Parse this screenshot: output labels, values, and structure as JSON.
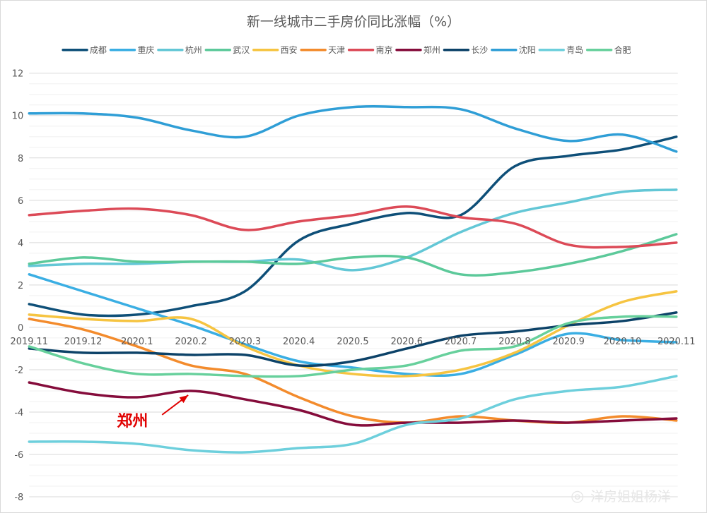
{
  "chart_data": {
    "type": "line",
    "title": "新一线城市二手房价同比涨幅（%）",
    "categories": [
      "2019.11",
      "2019.12",
      "2020.1",
      "2020.2",
      "2020.3",
      "2020.4",
      "2020.5",
      "2020.6",
      "2020.7",
      "2020.8",
      "2020.9",
      "2020.10",
      "2020.11"
    ],
    "ylim": [
      -8,
      12
    ],
    "yticks": [
      12,
      10,
      8,
      6,
      4,
      2,
      0,
      -2,
      -4,
      -6,
      -8
    ],
    "xlabel": "",
    "ylabel": "",
    "grid": true,
    "legend_position": "top",
    "series": [
      {
        "name": "成都",
        "color": "#0e4f78",
        "values": [
          1.1,
          0.6,
          0.6,
          1.0,
          1.7,
          4.1,
          4.9,
          5.4,
          5.3,
          7.6,
          8.1,
          8.4,
          9.0
        ]
      },
      {
        "name": "重庆",
        "color": "#3aaee3",
        "values": [
          2.5,
          1.7,
          0.9,
          0.1,
          -0.8,
          -1.6,
          -1.9,
          -2.2,
          -2.2,
          -1.3,
          -0.3,
          -0.6,
          -0.7
        ]
      },
      {
        "name": "杭州",
        "color": "#63c7d6",
        "values": [
          2.9,
          3.0,
          3.0,
          3.1,
          3.1,
          3.2,
          2.7,
          3.3,
          4.5,
          5.4,
          5.9,
          6.4,
          6.5
        ]
      },
      {
        "name": "武汉",
        "color": "#5cc99a",
        "values": [
          3.0,
          3.3,
          3.1,
          3.1,
          3.1,
          3.0,
          3.3,
          3.3,
          2.5,
          2.6,
          3.0,
          3.6,
          4.4
        ]
      },
      {
        "name": "西安",
        "color": "#f6c441",
        "values": [
          0.6,
          0.4,
          0.3,
          0.4,
          -0.9,
          -1.8,
          -2.2,
          -2.3,
          -2.0,
          -1.2,
          0.1,
          1.2,
          1.7
        ]
      },
      {
        "name": "天津",
        "color": "#f38b2c",
        "values": [
          0.4,
          -0.1,
          -0.9,
          -1.8,
          -2.2,
          -3.3,
          -4.2,
          -4.5,
          -4.2,
          -4.4,
          -4.5,
          -4.2,
          -4.4
        ]
      },
      {
        "name": "南京",
        "color": "#dc4a57",
        "values": [
          5.3,
          5.5,
          5.6,
          5.3,
          4.6,
          5.0,
          5.3,
          5.7,
          5.2,
          4.9,
          3.9,
          3.8,
          4.0
        ]
      },
      {
        "name": "郑州",
        "color": "#850c3b",
        "values": [
          -2.6,
          -3.1,
          -3.3,
          -3.0,
          -3.4,
          -3.9,
          -4.6,
          -4.5,
          -4.5,
          -4.4,
          -4.5,
          -4.4,
          -4.3
        ]
      },
      {
        "name": "长沙",
        "color": "#0c4268",
        "values": [
          -1.0,
          -1.2,
          -1.2,
          -1.3,
          -1.3,
          -1.8,
          -1.6,
          -1.0,
          -0.4,
          -0.2,
          0.1,
          0.3,
          0.7
        ]
      },
      {
        "name": "沈阳",
        "color": "#2f9ed6",
        "values": [
          10.1,
          10.1,
          9.9,
          9.3,
          9.0,
          10.0,
          10.4,
          10.4,
          10.3,
          9.4,
          8.8,
          9.1,
          8.3
        ]
      },
      {
        "name": "青岛",
        "color": "#6dcfdc",
        "values": [
          -5.4,
          -5.4,
          -5.5,
          -5.8,
          -5.9,
          -5.7,
          -5.5,
          -4.6,
          -4.3,
          -3.4,
          -3.0,
          -2.8,
          -2.3
        ]
      },
      {
        "name": "合肥",
        "color": "#67d09c",
        "values": [
          -0.9,
          -1.7,
          -2.2,
          -2.2,
          -2.3,
          -2.3,
          -2.0,
          -1.8,
          -1.1,
          -0.9,
          0.2,
          0.5,
          0.5
        ]
      }
    ],
    "annotations": [
      {
        "text": "郑州",
        "series": "郑州",
        "category": "2020.2"
      }
    ]
  },
  "watermark": "洋房姐姐杨洋"
}
